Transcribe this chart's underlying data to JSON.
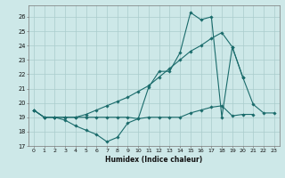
{
  "xlabel": "Humidex (Indice chaleur)",
  "background_color": "#cde8e8",
  "grid_color": "#aacccc",
  "line_color": "#1a6b6b",
  "xlim": [
    -0.5,
    23.5
  ],
  "ylim": [
    17,
    26.8
  ],
  "yticks": [
    17,
    18,
    19,
    20,
    21,
    22,
    23,
    24,
    25,
    26
  ],
  "xticks": [
    0,
    1,
    2,
    3,
    4,
    5,
    6,
    7,
    8,
    9,
    10,
    11,
    12,
    13,
    14,
    15,
    16,
    17,
    18,
    19,
    20,
    21,
    22,
    23
  ],
  "series": [
    [
      19.5,
      19.0,
      19.0,
      18.8,
      18.4,
      18.1,
      17.8,
      17.3,
      17.6,
      18.6,
      18.9,
      21.1,
      22.2,
      22.2,
      23.5,
      26.3,
      25.8,
      26.0,
      19.0,
      23.9,
      21.8,
      19.9,
      19.3,
      19.3
    ],
    [
      19.5,
      19.0,
      19.0,
      19.0,
      19.0,
      19.0,
      19.0,
      19.0,
      19.0,
      19.0,
      18.9,
      19.0,
      19.0,
      19.0,
      19.0,
      19.3,
      19.5,
      19.7,
      19.8,
      19.1,
      19.2,
      19.2,
      null,
      null
    ],
    [
      19.5,
      19.0,
      19.0,
      19.0,
      19.0,
      19.2,
      19.5,
      19.8,
      20.1,
      20.4,
      20.8,
      21.2,
      21.8,
      22.4,
      23.0,
      23.6,
      24.0,
      24.5,
      24.9,
      23.9,
      21.8,
      null,
      null,
      null
    ]
  ]
}
